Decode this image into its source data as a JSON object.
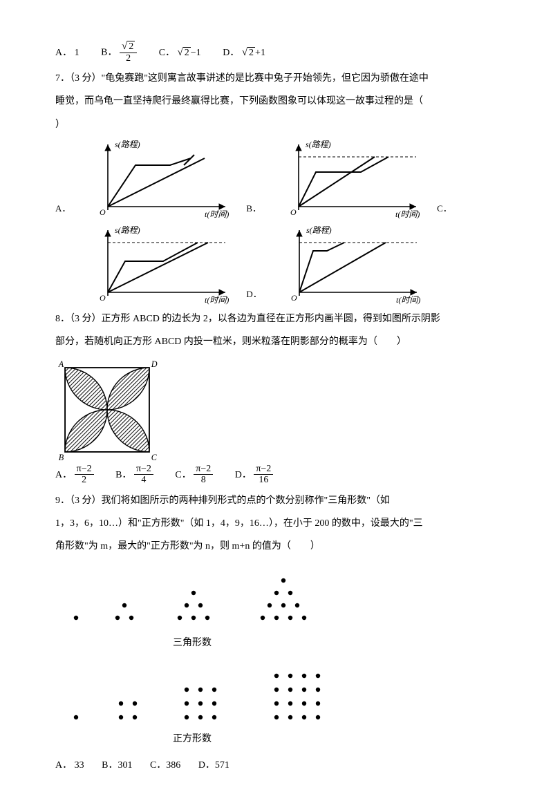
{
  "q6": {
    "options": {
      "a_label": "A．",
      "a_val": "1",
      "b_label": "B．",
      "b_num": "√2",
      "b_den": "2",
      "c_label": "C．",
      "c_val": "√2−1",
      "d_label": "D．",
      "d_val": "√2+1"
    }
  },
  "q7": {
    "line1": "7．（3 分）\"龟兔赛跑\"这则寓言故事讲述的是比赛中兔子开始领先，但它因为骄傲在途中",
    "line2": "睡觉，而乌龟一直坚持爬行最终赢得比赛，下列函数图象可以体现这一故事过程的是（",
    "line3": "）",
    "y_axis": "s(路程)",
    "x_axis": "t(时间)",
    "origin": "O",
    "opt_labels": {
      "a": "A．",
      "b": "B．",
      "c": "C．",
      "d": "D．"
    }
  },
  "q8": {
    "line1": "8．（3 分）正方形 ABCD 的边长为 2，以各边为直径在正方形内画半圆，得到如图所示阴影",
    "line2": "部分，若随机向正方形 ABCD 内投一粒米，则米粒落在阴影部分的概率为（　　）",
    "corners": {
      "a": "A",
      "b": "B",
      "c": "C",
      "d": "D"
    },
    "options": {
      "a_label": "A．",
      "a_num": "π−2",
      "a_den": "2",
      "b_label": "B．",
      "b_num": "π−2",
      "b_den": "4",
      "c_label": "C．",
      "c_num": "π−2",
      "c_den": "8",
      "d_label": "D．",
      "d_num": "π−2",
      "d_den": "16"
    }
  },
  "q9": {
    "line1": "9．（3 分）我们将如图所示的两种排列形式的点的个数分别称作\"三角形数\"（如",
    "line2": "1，3，6，10…）和\"正方形数\"（如 1，4，9，16…），在小于 200 的数中，设最大的\"三",
    "line3": "角形数\"为 m，最大的\"正方形数\"为 n，则 m+n 的值为（　　）",
    "tri_caption": "三角形数",
    "sq_caption": "正方形数",
    "options": {
      "a": "A．  33",
      "b": "B．301",
      "c": "C．386",
      "d": "D．571"
    }
  },
  "style": {
    "text_color": "#000000",
    "bg": "#ffffff",
    "stroke": "#000000",
    "stroke_width": 1.6,
    "fontsize": 14
  }
}
